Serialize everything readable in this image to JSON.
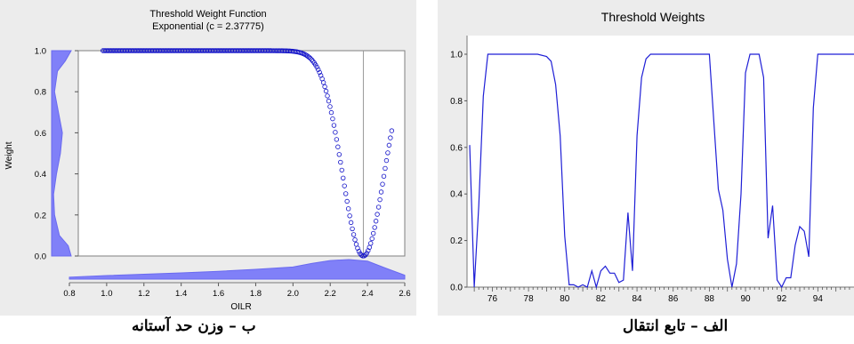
{
  "captions": {
    "left": "ب – وزن حد آستانه",
    "right": "الف – تابع انتقال"
  },
  "colors": {
    "series": "#1f1fd6",
    "density": "#8080f8",
    "panel": "#ececec",
    "marker": "#1010c8"
  },
  "chart_data": [
    {
      "type": "scatter",
      "title": "Threshold Weight Function",
      "subtitle": "Exponential (c = 2.37775)",
      "xlabel": "OILR",
      "ylabel": "Weight",
      "xlim": [
        0.8,
        2.6
      ],
      "ylim": [
        0.0,
        1.0
      ],
      "xticks": [
        "0.8",
        "1.0",
        "1.2",
        "1.4",
        "1.6",
        "1.8",
        "2.0",
        "2.2",
        "2.4",
        "2.6"
      ],
      "yticks": [
        "0.0",
        "0.2",
        "0.4",
        "0.6",
        "0.8",
        "1.0"
      ],
      "threshold_c": 2.37775,
      "x_range_points": [
        0.98,
        2.53
      ],
      "curve_end_weight": 0.61,
      "marginals": {
        "x_density": {
          "x": [
            0.8,
            1.0,
            1.2,
            1.4,
            1.6,
            1.8,
            2.0,
            2.1,
            2.2,
            2.3,
            2.4,
            2.5,
            2.6
          ],
          "y": [
            0.1,
            0.18,
            0.25,
            0.32,
            0.4,
            0.5,
            0.62,
            0.8,
            0.95,
            1.0,
            0.92,
            0.55,
            0.2
          ]
        },
        "y_density": {
          "y": [
            0.0,
            0.05,
            0.1,
            0.2,
            0.3,
            0.4,
            0.5,
            0.6,
            0.7,
            0.8,
            0.9,
            0.95,
            1.0
          ],
          "x": [
            1.0,
            0.85,
            0.4,
            0.15,
            0.1,
            0.25,
            0.45,
            0.55,
            0.35,
            0.15,
            0.3,
            0.7,
            1.0
          ]
        }
      }
    },
    {
      "type": "line",
      "title": "Threshold Weights",
      "ylim": [
        0.0,
        1.0
      ],
      "xlim": [
        74.6,
        96
      ],
      "xticks": [
        "76",
        "78",
        "80",
        "82",
        "84",
        "86",
        "88",
        "90",
        "92",
        "94"
      ],
      "yticks": [
        "0.0",
        "0.2",
        "0.4",
        "0.6",
        "0.8",
        "1.0"
      ],
      "series": [
        {
          "x": [
            74.75,
            75.0,
            75.25,
            75.5,
            75.75,
            76.0,
            76.5,
            77.0,
            77.5,
            78.0,
            78.5,
            79.0,
            79.25,
            79.5,
            79.75,
            80.0,
            80.25,
            80.5,
            80.75,
            81.0,
            81.25,
            81.5,
            81.75,
            82.0,
            82.25,
            82.5,
            82.75,
            83.0,
            83.25,
            83.5,
            83.75,
            84.0,
            84.25,
            84.5,
            84.75,
            85.0,
            85.5,
            86.0,
            86.5,
            87.0,
            87.5,
            88.0,
            88.5,
            88.75,
            89.0,
            89.25,
            89.5,
            89.75,
            90.0,
            90.25,
            90.5,
            90.75,
            91.0,
            91.25,
            91.5,
            91.75,
            92.0,
            92.25,
            92.5,
            92.75,
            93.0,
            93.25,
            93.5,
            93.75,
            94.0,
            94.25,
            94.5,
            94.75,
            95.0,
            95.5,
            96.0
          ],
          "y": [
            0.61,
            0.0,
            0.35,
            0.82,
            1.0,
            1.0,
            1.0,
            1.0,
            1.0,
            1.0,
            1.0,
            0.99,
            0.97,
            0.87,
            0.65,
            0.22,
            0.01,
            0.01,
            0.0,
            0.01,
            0.0,
            0.07,
            0.0,
            0.07,
            0.09,
            0.06,
            0.06,
            0.02,
            0.03,
            0.32,
            0.07,
            0.65,
            0.9,
            0.98,
            1.0,
            1.0,
            1.0,
            1.0,
            1.0,
            1.0,
            1.0,
            1.0,
            0.42,
            0.33,
            0.12,
            0.0,
            0.1,
            0.4,
            0.92,
            1.0,
            1.0,
            1.0,
            0.9,
            0.21,
            0.35,
            0.03,
            0.0,
            0.04,
            0.04,
            0.18,
            0.26,
            0.24,
            0.13,
            0.77,
            1.0,
            1.0,
            1.0,
            1.0,
            1.0,
            1.0,
            1.0
          ]
        }
      ]
    }
  ]
}
